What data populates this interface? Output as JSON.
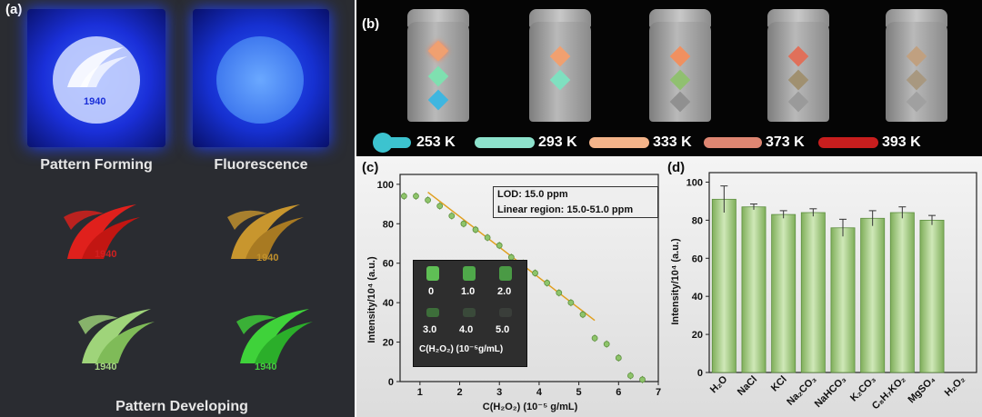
{
  "panel_a": {
    "label": "(a)",
    "captions": {
      "pattern_forming": "Pattern Forming",
      "fluorescence": "Fluorescence",
      "pattern_developing": "Pattern Developing"
    },
    "logo_text": [
      "1940",
      "1940",
      "1940",
      "1940",
      "1940"
    ],
    "colors": {
      "uv_blue": "#1f3cff",
      "red_pattern": "#e0201c",
      "orange_pattern": "#c8962e",
      "green_pattern": "#8fd06a",
      "green_pattern2": "#3fd23a"
    }
  },
  "panel_b": {
    "label": "(b)",
    "temperatures": [
      "253 K",
      "293 K",
      "333 K",
      "373 K",
      "393 K"
    ],
    "bar_colors": [
      "#3cc3cf",
      "#8de2cc",
      "#f4b48a",
      "#de8672",
      "#c81e1e"
    ]
  },
  "chart_data": [
    {
      "panel": "(c)",
      "type": "scatter",
      "xlabel": "C(H₂O₂) (10⁻⁵ g/mL)",
      "ylabel": "Intensity/10⁴ (a.u.)",
      "xlim": [
        0.5,
        7
      ],
      "ylim": [
        0,
        105
      ],
      "xticks": [
        1,
        2,
        3,
        4,
        5,
        6,
        7
      ],
      "yticks": [
        0,
        20,
        40,
        60,
        80,
        100
      ],
      "points": [
        {
          "x": 0.6,
          "y": 94
        },
        {
          "x": 0.9,
          "y": 94
        },
        {
          "x": 1.2,
          "y": 92
        },
        {
          "x": 1.5,
          "y": 89
        },
        {
          "x": 1.8,
          "y": 84
        },
        {
          "x": 2.1,
          "y": 80
        },
        {
          "x": 2.4,
          "y": 77
        },
        {
          "x": 2.7,
          "y": 73
        },
        {
          "x": 3.0,
          "y": 69
        },
        {
          "x": 3.3,
          "y": 63
        },
        {
          "x": 3.6,
          "y": 60
        },
        {
          "x": 3.9,
          "y": 55
        },
        {
          "x": 4.2,
          "y": 50
        },
        {
          "x": 4.5,
          "y": 45
        },
        {
          "x": 4.8,
          "y": 40
        },
        {
          "x": 5.1,
          "y": 34
        },
        {
          "x": 5.4,
          "y": 22
        },
        {
          "x": 5.7,
          "y": 19
        },
        {
          "x": 6.0,
          "y": 12
        },
        {
          "x": 6.3,
          "y": 3
        },
        {
          "x": 6.6,
          "y": 1
        }
      ],
      "fit_line": {
        "x": [
          1.2,
          5.4
        ],
        "y": [
          96,
          31
        ]
      },
      "color": "#8ec46a",
      "annotations": [
        "LOD: 15.0 ppm",
        "Linear region: 15.0-51.0 ppm"
      ],
      "inset": {
        "values": [
          "0",
          "1.0",
          "2.0",
          "3.0",
          "4.0",
          "5.0"
        ],
        "label": "C(H₂O₂) (10⁻⁵g/mL)"
      }
    },
    {
      "panel": "(d)",
      "type": "bar",
      "ylabel": "Intensity/10⁴ (a.u.)",
      "ylim": [
        0,
        105
      ],
      "yticks": [
        0,
        20,
        40,
        60,
        80,
        100
      ],
      "categories": [
        "H₂O",
        "NaCl",
        "KCl",
        "Na₂CO₃",
        "NaHCO₃",
        "K₂CO₃",
        "C₈H₇KO₂",
        "MgSO₄",
        "H₂O₂"
      ],
      "values": [
        91,
        87,
        83,
        84,
        76,
        81,
        84,
        80,
        0
      ],
      "errors": [
        7,
        1.5,
        2,
        2,
        4.5,
        4,
        3,
        2.5,
        0
      ],
      "color": "#a8d08d"
    }
  ]
}
